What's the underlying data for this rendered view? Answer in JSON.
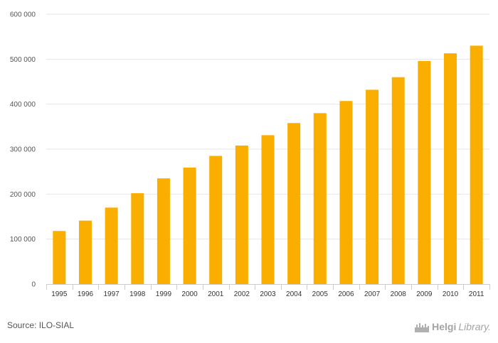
{
  "chart_data": {
    "type": "bar",
    "categories": [
      "1995",
      "1996",
      "1997",
      "1998",
      "1999",
      "2000",
      "2001",
      "2002",
      "2003",
      "2004",
      "2005",
      "2006",
      "2007",
      "2008",
      "2009",
      "2010",
      "2011"
    ],
    "values": [
      118000,
      141000,
      170000,
      202000,
      235000,
      259000,
      285000,
      308000,
      331000,
      358000,
      380000,
      407000,
      432000,
      460000,
      496000,
      513000,
      530000
    ],
    "ylim": [
      0,
      600000
    ],
    "yticks": [
      0,
      100000,
      200000,
      300000,
      400000,
      500000,
      600000
    ],
    "ytick_labels": [
      "0",
      "100 000",
      "200 000",
      "300 000",
      "400 000",
      "500 000",
      "600 000"
    ],
    "title": "",
    "xlabel": "",
    "ylabel": "",
    "bar_color": "#F9AE00",
    "grid": true
  },
  "footer": {
    "source": "Source: ILO-SIAL",
    "brand_a": "Helgi",
    "brand_b": "Library."
  }
}
